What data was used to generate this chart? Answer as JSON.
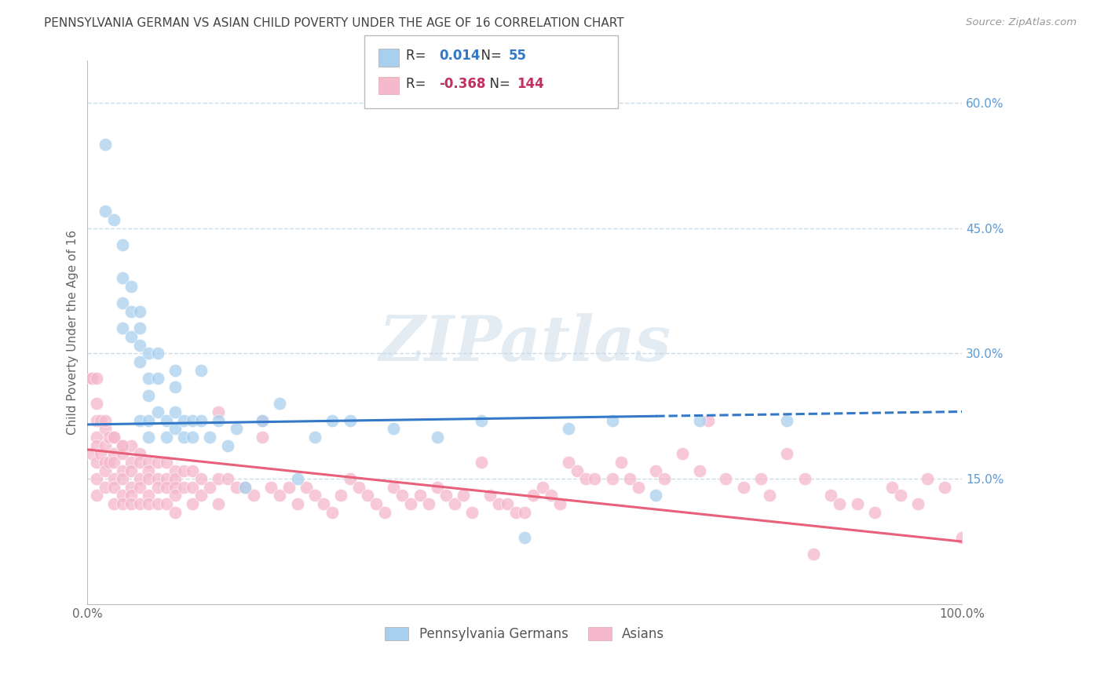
{
  "title": "PENNSYLVANIA GERMAN VS ASIAN CHILD POVERTY UNDER THE AGE OF 16 CORRELATION CHART",
  "source": "Source: ZipAtlas.com",
  "ylabel": "Child Poverty Under the Age of 16",
  "xlim": [
    0,
    1.0
  ],
  "ylim": [
    0,
    0.65
  ],
  "yticks": [
    0.15,
    0.3,
    0.45,
    0.6
  ],
  "ytick_labels": [
    "15.0%",
    "30.0%",
    "45.0%",
    "60.0%"
  ],
  "r_blue": "0.014",
  "n_blue": "55",
  "r_pink": "-0.368",
  "n_pink": "144",
  "blue_color": "#a8d0ee",
  "pink_color": "#f5b8cc",
  "blue_line_color": "#3478c8",
  "pink_line_color": "#e8607a",
  "legend_blue_label": "Pennsylvania Germans",
  "legend_pink_label": "Asians",
  "watermark_text": "ZIPatlas",
  "background_color": "#ffffff",
  "grid_color": "#ccdde8",
  "title_color": "#444444",
  "axis_label_color": "#666666",
  "right_tick_color": "#5b9bd5",
  "blue_scatter_x": [
    0.02,
    0.02,
    0.03,
    0.04,
    0.04,
    0.04,
    0.04,
    0.05,
    0.05,
    0.05,
    0.06,
    0.06,
    0.06,
    0.06,
    0.06,
    0.07,
    0.07,
    0.07,
    0.07,
    0.07,
    0.08,
    0.08,
    0.08,
    0.09,
    0.09,
    0.1,
    0.1,
    0.1,
    0.1,
    0.11,
    0.11,
    0.12,
    0.12,
    0.13,
    0.13,
    0.14,
    0.15,
    0.16,
    0.17,
    0.18,
    0.2,
    0.22,
    0.24,
    0.26,
    0.28,
    0.3,
    0.35,
    0.4,
    0.45,
    0.5,
    0.55,
    0.6,
    0.65,
    0.7,
    0.8
  ],
  "blue_scatter_y": [
    0.55,
    0.47,
    0.46,
    0.43,
    0.39,
    0.36,
    0.33,
    0.38,
    0.35,
    0.32,
    0.35,
    0.33,
    0.31,
    0.29,
    0.22,
    0.3,
    0.27,
    0.25,
    0.22,
    0.2,
    0.3,
    0.27,
    0.23,
    0.22,
    0.2,
    0.28,
    0.26,
    0.23,
    0.21,
    0.22,
    0.2,
    0.22,
    0.2,
    0.28,
    0.22,
    0.2,
    0.22,
    0.19,
    0.21,
    0.14,
    0.22,
    0.24,
    0.15,
    0.2,
    0.22,
    0.22,
    0.21,
    0.2,
    0.22,
    0.08,
    0.21,
    0.22,
    0.13,
    0.22,
    0.22
  ],
  "pink_scatter_x": [
    0.005,
    0.005,
    0.01,
    0.01,
    0.01,
    0.01,
    0.01,
    0.01,
    0.01,
    0.015,
    0.015,
    0.02,
    0.02,
    0.02,
    0.02,
    0.02,
    0.025,
    0.025,
    0.03,
    0.03,
    0.03,
    0.03,
    0.03,
    0.03,
    0.04,
    0.04,
    0.04,
    0.04,
    0.04,
    0.04,
    0.05,
    0.05,
    0.05,
    0.05,
    0.05,
    0.05,
    0.06,
    0.06,
    0.06,
    0.06,
    0.06,
    0.07,
    0.07,
    0.07,
    0.07,
    0.07,
    0.08,
    0.08,
    0.08,
    0.08,
    0.09,
    0.09,
    0.09,
    0.09,
    0.1,
    0.1,
    0.1,
    0.1,
    0.1,
    0.11,
    0.11,
    0.12,
    0.12,
    0.12,
    0.13,
    0.13,
    0.14,
    0.15,
    0.15,
    0.15,
    0.16,
    0.17,
    0.18,
    0.19,
    0.2,
    0.2,
    0.21,
    0.22,
    0.23,
    0.24,
    0.25,
    0.26,
    0.27,
    0.28,
    0.29,
    0.3,
    0.31,
    0.32,
    0.33,
    0.34,
    0.35,
    0.36,
    0.37,
    0.38,
    0.39,
    0.4,
    0.41,
    0.42,
    0.43,
    0.44,
    0.45,
    0.46,
    0.47,
    0.48,
    0.49,
    0.5,
    0.51,
    0.52,
    0.53,
    0.54,
    0.55,
    0.56,
    0.57,
    0.58,
    0.6,
    0.61,
    0.62,
    0.63,
    0.65,
    0.66,
    0.68,
    0.7,
    0.71,
    0.73,
    0.75,
    0.77,
    0.78,
    0.8,
    0.82,
    0.83,
    0.85,
    0.86,
    0.88,
    0.9,
    0.92,
    0.93,
    0.95,
    0.96,
    0.98,
    1.0,
    0.005,
    0.01,
    0.02,
    0.03,
    0.04
  ],
  "pink_scatter_y": [
    0.27,
    0.18,
    0.24,
    0.22,
    0.2,
    0.19,
    0.17,
    0.15,
    0.13,
    0.22,
    0.18,
    0.21,
    0.19,
    0.17,
    0.16,
    0.14,
    0.2,
    0.17,
    0.2,
    0.18,
    0.17,
    0.15,
    0.14,
    0.12,
    0.19,
    0.18,
    0.16,
    0.15,
    0.13,
    0.12,
    0.19,
    0.17,
    0.16,
    0.14,
    0.13,
    0.12,
    0.18,
    0.17,
    0.15,
    0.14,
    0.12,
    0.17,
    0.16,
    0.15,
    0.13,
    0.12,
    0.17,
    0.15,
    0.14,
    0.12,
    0.17,
    0.15,
    0.14,
    0.12,
    0.16,
    0.15,
    0.14,
    0.13,
    0.11,
    0.16,
    0.14,
    0.16,
    0.14,
    0.12,
    0.15,
    0.13,
    0.14,
    0.23,
    0.15,
    0.12,
    0.15,
    0.14,
    0.14,
    0.13,
    0.22,
    0.2,
    0.14,
    0.13,
    0.14,
    0.12,
    0.14,
    0.13,
    0.12,
    0.11,
    0.13,
    0.15,
    0.14,
    0.13,
    0.12,
    0.11,
    0.14,
    0.13,
    0.12,
    0.13,
    0.12,
    0.14,
    0.13,
    0.12,
    0.13,
    0.11,
    0.17,
    0.13,
    0.12,
    0.12,
    0.11,
    0.11,
    0.13,
    0.14,
    0.13,
    0.12,
    0.17,
    0.16,
    0.15,
    0.15,
    0.15,
    0.17,
    0.15,
    0.14,
    0.16,
    0.15,
    0.18,
    0.16,
    0.22,
    0.15,
    0.14,
    0.15,
    0.13,
    0.18,
    0.15,
    0.06,
    0.13,
    0.12,
    0.12,
    0.11,
    0.14,
    0.13,
    0.12,
    0.15,
    0.14,
    0.08,
    0.27,
    0.27,
    0.22,
    0.2,
    0.19
  ],
  "blue_trendline_x0": 0.0,
  "blue_trendline_y0": 0.215,
  "blue_trendline_x1": 0.65,
  "blue_trendline_y1": 0.225,
  "blue_trendline_xdash0": 0.65,
  "blue_trendline_xdash1": 1.0,
  "pink_trendline_x0": 0.0,
  "pink_trendline_y0": 0.185,
  "pink_trendline_x1": 1.0,
  "pink_trendline_y1": 0.075
}
